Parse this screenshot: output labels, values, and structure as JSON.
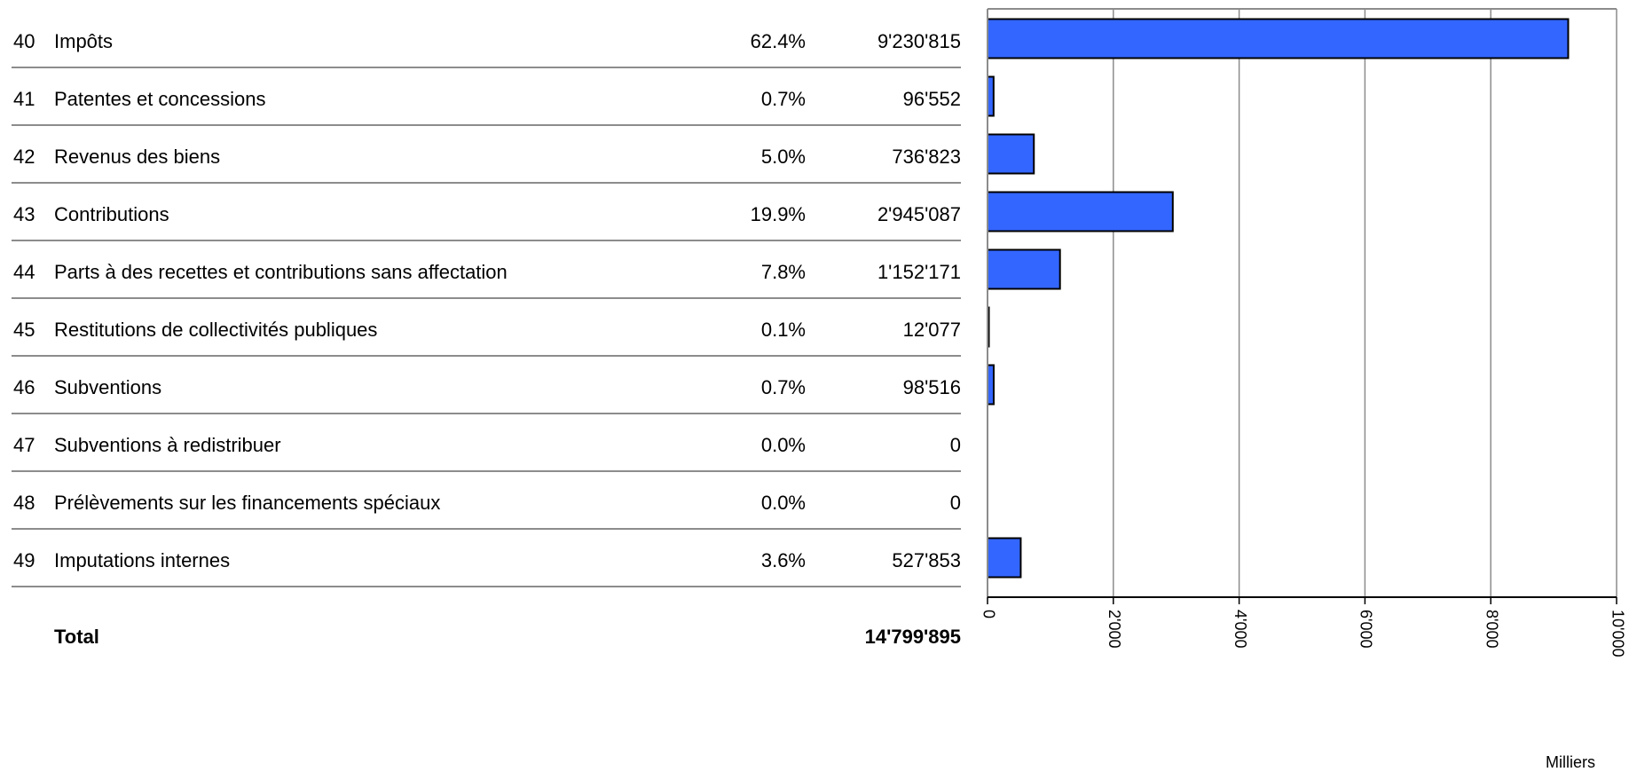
{
  "rows": [
    {
      "code": "40",
      "label": "Impôts",
      "pct": "62.4%",
      "amount": "9'230'815"
    },
    {
      "code": "41",
      "label": "Patentes et concessions",
      "pct": "0.7%",
      "amount": "96'552"
    },
    {
      "code": "42",
      "label": "Revenus des biens",
      "pct": "5.0%",
      "amount": "736'823"
    },
    {
      "code": "43",
      "label": "Contributions",
      "pct": "19.9%",
      "amount": "2'945'087"
    },
    {
      "code": "44",
      "label": "Parts à des recettes et contributions sans affectation",
      "pct": "7.8%",
      "amount": "1'152'171"
    },
    {
      "code": "45",
      "label": "Restitutions de collectivités publiques",
      "pct": "0.1%",
      "amount": "12'077"
    },
    {
      "code": "46",
      "label": "Subventions",
      "pct": "0.7%",
      "amount": "98'516"
    },
    {
      "code": "47",
      "label": "Subventions à redistribuer",
      "pct": "0.0%",
      "amount": "0"
    },
    {
      "code": "48",
      "label": "Prélèvements sur les financements spéciaux",
      "pct": "0.0%",
      "amount": "0"
    },
    {
      "code": "49",
      "label": "Imputations internes",
      "pct": "3.6%",
      "amount": "527'853"
    }
  ],
  "total": {
    "label": "Total",
    "amount": "14'799'895"
  },
  "chart_data": {
    "type": "bar",
    "orientation": "horizontal",
    "categories": [
      "40",
      "41",
      "42",
      "43",
      "44",
      "45",
      "46",
      "47",
      "48",
      "49"
    ],
    "values": [
      9230.815,
      96.552,
      736.823,
      2945.087,
      1152.171,
      12.077,
      98.516,
      0,
      0,
      527.853
    ],
    "xlim": [
      0,
      10000
    ],
    "xticks": [
      0,
      2000,
      4000,
      6000,
      8000,
      10000
    ],
    "xtick_labels": [
      "0",
      "2'000",
      "4'000",
      "6'000",
      "8'000",
      "10'000"
    ],
    "xlabel": "Milliers",
    "grid": true,
    "bar_color": "#3366ff",
    "bar_edge": "#000000",
    "grid_color": "#8c8c8c"
  }
}
